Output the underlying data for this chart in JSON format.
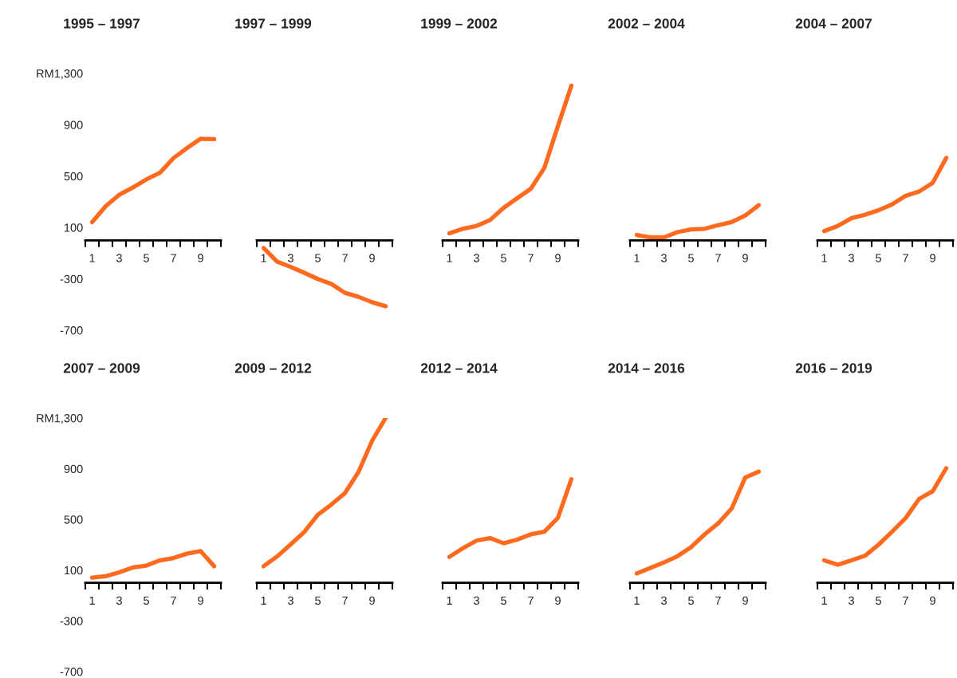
{
  "chart_data": [
    {
      "type": "line",
      "title": "1995 – 1997",
      "color": "#ff6a1f",
      "x": [
        1,
        2,
        3,
        4,
        5,
        6,
        7,
        8,
        9,
        10
      ],
      "values": [
        142,
        266,
        355,
        411,
        474,
        526,
        640,
        719,
        791,
        788
      ],
      "xlim": [
        0.5,
        10.5
      ],
      "xticks": [
        {
          "value": 0.5,
          "label": null
        },
        1,
        {
          "value": 1.5,
          "label": null
        },
        {
          "value": 2.5,
          "label": null
        },
        3,
        {
          "value": 3.5,
          "label": null
        },
        {
          "value": 4.5,
          "label": null
        },
        5,
        {
          "value": 5.5,
          "label": null
        },
        {
          "value": 6.5,
          "label": null
        },
        7,
        {
          "value": 7.5,
          "label": null
        },
        {
          "value": 8.5,
          "label": null
        },
        9,
        {
          "value": 9.5,
          "label": null
        },
        {
          "value": 10.5,
          "label": null
        }
      ],
      "ylim": [
        -700,
        1300
      ],
      "yticks": [
        -700,
        -300,
        100,
        500,
        900,
        {
          "value": 1300,
          "label": "RM1,300"
        }
      ],
      "grid": false
    },
    {
      "type": "line",
      "title": "1997 – 1999",
      "color": "#ff6a1f",
      "x": [
        1,
        2,
        3,
        4,
        5,
        6,
        7,
        8,
        9,
        10
      ],
      "values": [
        -60,
        -166,
        -207,
        -253,
        -301,
        -340,
        -409,
        -440,
        -482,
        -513
      ],
      "xlim": [
        0.5,
        10.5
      ],
      "xticks": [
        {
          "value": 0.5,
          "label": null
        },
        1,
        {
          "value": 1.5,
          "label": null
        },
        {
          "value": 2.5,
          "label": null
        },
        3,
        {
          "value": 3.5,
          "label": null
        },
        {
          "value": 4.5,
          "label": null
        },
        5,
        {
          "value": 5.5,
          "label": null
        },
        {
          "value": 6.5,
          "label": null
        },
        7,
        {
          "value": 7.5,
          "label": null
        },
        {
          "value": 8.5,
          "label": null
        },
        9,
        {
          "value": 9.5,
          "label": null
        },
        {
          "value": 10.5,
          "label": null
        }
      ],
      "ylim": [
        -700,
        1300
      ],
      "tick_labels": "x",
      "grid": false
    },
    {
      "type": "line",
      "title": "1999 – 2002",
      "color": "#ff6a1f",
      "x": [
        1,
        2,
        3,
        4,
        5,
        6,
        7,
        8,
        9,
        10
      ],
      "values": [
        55,
        90,
        112,
        158,
        253,
        328,
        401,
        563,
        888,
        1204
      ],
      "xlim": [
        0.5,
        10.5
      ],
      "xticks": [
        {
          "value": 0.5,
          "label": null
        },
        1,
        {
          "value": 1.5,
          "label": null
        },
        {
          "value": 2.5,
          "label": null
        },
        3,
        {
          "value": 3.5,
          "label": null
        },
        {
          "value": 4.5,
          "label": null
        },
        5,
        {
          "value": 5.5,
          "label": null
        },
        {
          "value": 6.5,
          "label": null
        },
        7,
        {
          "value": 7.5,
          "label": null
        },
        {
          "value": 8.5,
          "label": null
        },
        9,
        {
          "value": 9.5,
          "label": null
        },
        {
          "value": 10.5,
          "label": null
        }
      ],
      "ylim": [
        -700,
        1300
      ],
      "tick_labels": "x",
      "grid": false
    },
    {
      "type": "line",
      "title": "2002 – 2004",
      "color": "#ff6a1f",
      "x": [
        1,
        2,
        3,
        4,
        5,
        6,
        7,
        8,
        9,
        10
      ],
      "values": [
        42,
        23,
        23,
        64,
        85,
        90,
        118,
        142,
        193,
        274
      ],
      "xlim": [
        0.5,
        10.5
      ],
      "xticks": [
        {
          "value": 0.5,
          "label": null
        },
        1,
        {
          "value": 1.5,
          "label": null
        },
        {
          "value": 2.5,
          "label": null
        },
        3,
        {
          "value": 3.5,
          "label": null
        },
        {
          "value": 4.5,
          "label": null
        },
        5,
        {
          "value": 5.5,
          "label": null
        },
        {
          "value": 6.5,
          "label": null
        },
        7,
        {
          "value": 7.5,
          "label": null
        },
        {
          "value": 8.5,
          "label": null
        },
        9,
        {
          "value": 9.5,
          "label": null
        },
        {
          "value": 10.5,
          "label": null
        }
      ],
      "ylim": [
        -700,
        1300
      ],
      "tick_labels": "x",
      "grid": false
    },
    {
      "type": "line",
      "title": "2004 – 2007",
      "color": "#ff6a1f",
      "x": [
        1,
        2,
        3,
        4,
        5,
        6,
        7,
        8,
        9,
        10
      ],
      "values": [
        72,
        112,
        172,
        199,
        234,
        280,
        347,
        380,
        447,
        642
      ],
      "xlim": [
        0.5,
        10.5
      ],
      "xticks": [
        {
          "value": 0.5,
          "label": null
        },
        1,
        {
          "value": 1.5,
          "label": null
        },
        {
          "value": 2.5,
          "label": null
        },
        3,
        {
          "value": 3.5,
          "label": null
        },
        {
          "value": 4.5,
          "label": null
        },
        5,
        {
          "value": 5.5,
          "label": null
        },
        {
          "value": 6.5,
          "label": null
        },
        7,
        {
          "value": 7.5,
          "label": null
        },
        {
          "value": 8.5,
          "label": null
        },
        9,
        {
          "value": 9.5,
          "label": null
        },
        {
          "value": 10.5,
          "label": null
        }
      ],
      "ylim": [
        -700,
        1300
      ],
      "tick_labels": "x",
      "grid": false
    },
    {
      "type": "line",
      "title": "2007 – 2009",
      "color": "#ff6a1f",
      "x": [
        1,
        2,
        3,
        4,
        5,
        6,
        7,
        8,
        9,
        10
      ],
      "values": [
        41,
        52,
        83,
        121,
        136,
        177,
        196,
        230,
        251,
        131
      ],
      "xlim": [
        0.5,
        10.5
      ],
      "xticks": [
        {
          "value": 0.5,
          "label": null
        },
        1,
        {
          "value": 1.5,
          "label": null
        },
        {
          "value": 2.5,
          "label": null
        },
        3,
        {
          "value": 3.5,
          "label": null
        },
        {
          "value": 4.5,
          "label": null
        },
        5,
        {
          "value": 5.5,
          "label": null
        },
        {
          "value": 6.5,
          "label": null
        },
        7,
        {
          "value": 7.5,
          "label": null
        },
        {
          "value": 8.5,
          "label": null
        },
        9,
        {
          "value": 9.5,
          "label": null
        },
        {
          "value": 10.5,
          "label": null
        }
      ],
      "ylim": [
        -700,
        1300
      ],
      "yticks": [
        -700,
        -300,
        100,
        500,
        900,
        {
          "value": 1300,
          "label": "RM1,300"
        }
      ],
      "grid": false
    },
    {
      "type": "line",
      "title": "2009 – 2012",
      "color": "#ff6a1f",
      "x": [
        1,
        2,
        3,
        4,
        5,
        6,
        7,
        8,
        9,
        10
      ],
      "values": [
        131,
        208,
        303,
        401,
        537,
        617,
        707,
        874,
        1119,
        1300
      ],
      "xlim": [
        0.5,
        10.5
      ],
      "xticks": [
        {
          "value": 0.5,
          "label": null
        },
        1,
        {
          "value": 1.5,
          "label": null
        },
        {
          "value": 2.5,
          "label": null
        },
        3,
        {
          "value": 3.5,
          "label": null
        },
        {
          "value": 4.5,
          "label": null
        },
        5,
        {
          "value": 5.5,
          "label": null
        },
        {
          "value": 6.5,
          "label": null
        },
        7,
        {
          "value": 7.5,
          "label": null
        },
        {
          "value": 8.5,
          "label": null
        },
        9,
        {
          "value": 9.5,
          "label": null
        },
        {
          "value": 10.5,
          "label": null
        }
      ],
      "ylim": [
        -700,
        1300
      ],
      "tick_labels": "x",
      "grid": false
    },
    {
      "type": "line",
      "title": "2012 – 2014",
      "color": "#ff6a1f",
      "x": [
        1,
        2,
        3,
        4,
        5,
        6,
        7,
        8,
        9,
        10
      ],
      "values": [
        205,
        273,
        333,
        353,
        312,
        341,
        382,
        403,
        512,
        818
      ],
      "xlim": [
        0.5,
        10.5
      ],
      "xticks": [
        {
          "value": 0.5,
          "label": null
        },
        1,
        {
          "value": 1.5,
          "label": null
        },
        {
          "value": 2.5,
          "label": null
        },
        3,
        {
          "value": 3.5,
          "label": null
        },
        {
          "value": 4.5,
          "label": null
        },
        5,
        {
          "value": 5.5,
          "label": null
        },
        {
          "value": 6.5,
          "label": null
        },
        7,
        {
          "value": 7.5,
          "label": null
        },
        {
          "value": 8.5,
          "label": null
        },
        9,
        {
          "value": 9.5,
          "label": null
        },
        {
          "value": 10.5,
          "label": null
        }
      ],
      "ylim": [
        -700,
        1300
      ],
      "tick_labels": "x",
      "grid": false
    },
    {
      "type": "line",
      "title": "2014 – 2016",
      "color": "#ff6a1f",
      "x": [
        1,
        2,
        3,
        4,
        5,
        6,
        7,
        8,
        9,
        10
      ],
      "values": [
        74,
        118,
        161,
        210,
        281,
        382,
        469,
        586,
        831,
        877
      ],
      "xlim": [
        0.5,
        10.5
      ],
      "xticks": [
        {
          "value": 0.5,
          "label": null
        },
        1,
        {
          "value": 1.5,
          "label": null
        },
        {
          "value": 2.5,
          "label": null
        },
        3,
        {
          "value": 3.5,
          "label": null
        },
        {
          "value": 4.5,
          "label": null
        },
        5,
        {
          "value": 5.5,
          "label": null
        },
        {
          "value": 6.5,
          "label": null
        },
        7,
        {
          "value": 7.5,
          "label": null
        },
        {
          "value": 8.5,
          "label": null
        },
        9,
        {
          "value": 9.5,
          "label": null
        },
        {
          "value": 10.5,
          "label": null
        }
      ],
      "ylim": [
        -700,
        1300
      ],
      "tick_labels": "x",
      "grid": false
    },
    {
      "type": "line",
      "title": "2016 – 2019",
      "color": "#ff6a1f",
      "x": [
        1,
        2,
        3,
        4,
        5,
        6,
        7,
        8,
        9,
        10
      ],
      "values": [
        178,
        142,
        178,
        213,
        300,
        403,
        510,
        662,
        722,
        904
      ],
      "xlim": [
        0.5,
        10.5
      ],
      "xticks": [
        {
          "value": 0.5,
          "label": null
        },
        1,
        {
          "value": 1.5,
          "label": null
        },
        {
          "value": 2.5,
          "label": null
        },
        3,
        {
          "value": 3.5,
          "label": null
        },
        {
          "value": 4.5,
          "label": null
        },
        5,
        {
          "value": 5.5,
          "label": null
        },
        {
          "value": 6.5,
          "label": null
        },
        7,
        {
          "value": 7.5,
          "label": null
        },
        {
          "value": 8.5,
          "label": null
        },
        9,
        {
          "value": 9.5,
          "label": null
        },
        {
          "value": 10.5,
          "label": null
        }
      ],
      "ylim": [
        -700,
        1300
      ],
      "tick_labels": "x",
      "grid": false
    }
  ]
}
